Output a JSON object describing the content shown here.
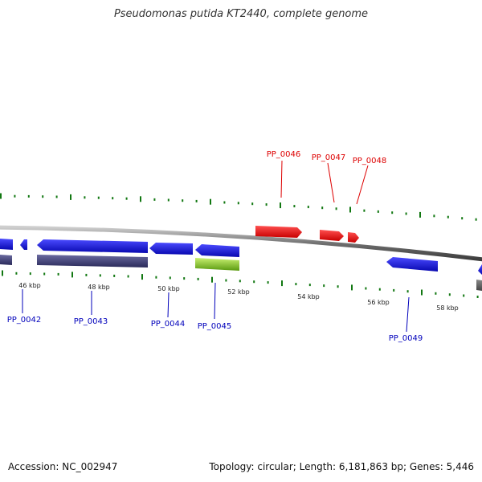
{
  "title": "Pseudomonas putida KT2440, complete genome",
  "footer": {
    "accession": "Accession: NC_002947",
    "summary": "Topology: circular; Length: 6,181,863 bp; Genes: 5,446"
  },
  "colors": {
    "forward_gene": "#e00000",
    "reverse_gene": "#1010e0",
    "reverse_cds_product": "#3c3c78",
    "highlight_gene": "#80d030",
    "backbone": "#6e6e6e",
    "tick": "#117711",
    "forward_label": "#dd0000",
    "reverse_label": "#0000bb"
  },
  "kbp_labels": [
    "46 kbp",
    "48 kbp",
    "50 kbp",
    "52 kbp",
    "54 kbp",
    "56 kbp",
    "58 kbp"
  ],
  "genes": [
    {
      "id": "PP_0042",
      "strand": "reverse"
    },
    {
      "id": "PP_0043",
      "strand": "reverse"
    },
    {
      "id": "PP_0044",
      "strand": "reverse"
    },
    {
      "id": "PP_0045",
      "strand": "reverse"
    },
    {
      "id": "PP_0046",
      "strand": "forward"
    },
    {
      "id": "PP_0047",
      "strand": "forward"
    },
    {
      "id": "PP_0048",
      "strand": "forward"
    },
    {
      "id": "PP_0049",
      "strand": "reverse"
    }
  ]
}
